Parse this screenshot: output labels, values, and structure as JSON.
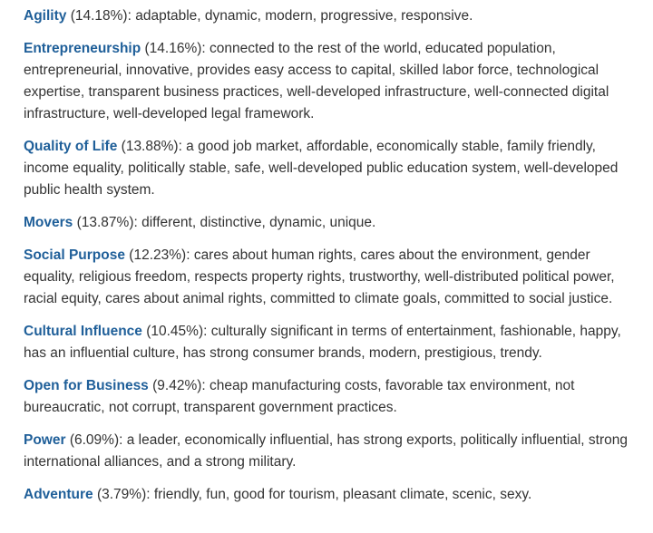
{
  "entries": [
    {
      "name": "Agility",
      "percent": "(14.18%)",
      "text": ": adaptable, dynamic, modern, progressive, responsive."
    },
    {
      "name": "Entrepreneurship",
      "percent": "(14.16%)",
      "text": ": connected to the rest of the world, educated population, entrepreneurial, innovative, provides easy access to capital, skilled labor force, technological expertise, transparent business practices, well-developed infrastructure, well-connected digital infrastructure, well-developed legal framework."
    },
    {
      "name": "Quality of Life",
      "percent": "(13.88%)",
      "text": ": a good job market, affordable, economically stable, family friendly, income equality, politically stable, safe, well-developed public education system, well-developed public health system."
    },
    {
      "name": "Movers",
      "percent": "(13.87%)",
      "text": ": different, distinctive, dynamic, unique."
    },
    {
      "name": "Social Purpose",
      "percent": "(12.23%)",
      "text": ": cares about human rights, cares about the environment, gender equality, religious freedom, respects property rights, trustworthy, well-distributed political power, racial equity, cares about animal rights, committed to climate goals, committed to social justice."
    },
    {
      "name": "Cultural Influence",
      "percent": "(10.45%)",
      "text": ": culturally significant in terms of entertainment, fashionable, happy, has an influential culture, has strong consumer brands, modern, prestigious, trendy."
    },
    {
      "name": "Open for Business",
      "percent": "(9.42%)",
      "text": ": cheap manufacturing costs, favorable tax environment, not bureaucratic, not corrupt, transparent government practices."
    },
    {
      "name": "Power",
      "percent": "(6.09%)",
      "text": ": a leader, economically influential, has strong exports, politically influential, strong international alliances, and a strong military."
    },
    {
      "name": "Adventure",
      "percent": "(3.79%)",
      "text": ": friendly, fun, good for tourism, pleasant climate, scenic, sexy."
    }
  ]
}
